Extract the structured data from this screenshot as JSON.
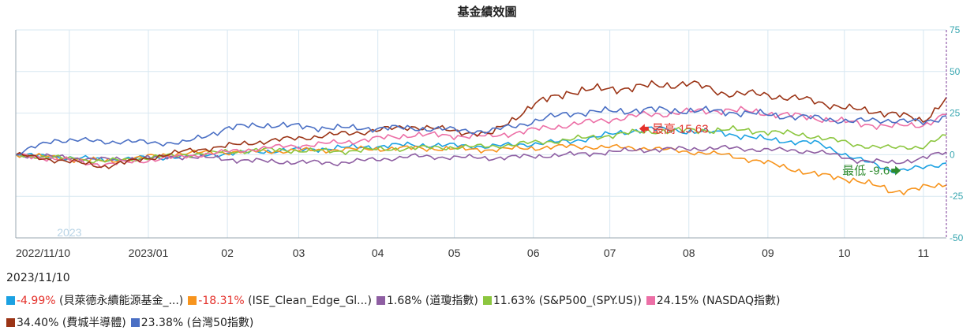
{
  "title": "基金績效圖",
  "as_of_date": "2023/11/10",
  "colors": {
    "grid": "#d7e7f1",
    "right_axis": "#3aa7b1",
    "annot_high": "#e4312b",
    "annot_low": "#2e8b2e",
    "neg_value": "#e4312b",
    "year_marker": "#b9d4e6"
  },
  "chart_data": {
    "type": "line",
    "title": "基金績效圖",
    "y_axis": {
      "position": "right",
      "range": [
        -50,
        75
      ],
      "ticks": [
        75,
        50,
        25,
        0,
        -25,
        -50
      ]
    },
    "x_range": [
      "2022-11-10",
      "2023-11-10"
    ],
    "x_ticks": [
      {
        "date": "2022-11-10",
        "label": "2022/11/10"
      },
      {
        "date": "2023-01-01",
        "label": "2023/01"
      },
      {
        "date": "2023-02-01",
        "label": "02"
      },
      {
        "date": "2023-03-01",
        "label": "03"
      },
      {
        "date": "2023-04-01",
        "label": "04"
      },
      {
        "date": "2023-05-01",
        "label": "05"
      },
      {
        "date": "2023-06-01",
        "label": "06"
      },
      {
        "date": "2023-07-01",
        "label": "07"
      },
      {
        "date": "2023-08-01",
        "label": "08"
      },
      {
        "date": "2023-09-01",
        "label": "09"
      },
      {
        "date": "2023-10-01",
        "label": "10"
      },
      {
        "date": "2023-11-01",
        "label": "11"
      }
    ],
    "year_marker": {
      "date": "2022-12-01",
      "label": "2023"
    },
    "grid": true,
    "legend_position": "bottom",
    "annotations": [
      {
        "label": "最高 15.63",
        "date": "2023-07-15",
        "value": 15.63,
        "arrow": "left"
      },
      {
        "label": "最低 -9.6",
        "date": "2023-10-20",
        "value": -9.6,
        "arrow": "right"
      }
    ],
    "series": [
      {
        "name": "貝萊德永續能源基金_...",
        "value_text": "-4.99%",
        "color": "#1ba1e2",
        "points": [
          [
            "2022-11-10",
            0
          ],
          [
            "2022-12-15",
            -3
          ],
          [
            "2023-01-15",
            -1
          ],
          [
            "2023-02-15",
            2
          ],
          [
            "2023-03-15",
            4
          ],
          [
            "2023-04-15",
            6
          ],
          [
            "2023-05-15",
            5
          ],
          [
            "2023-06-15",
            8
          ],
          [
            "2023-07-15",
            15.63
          ],
          [
            "2023-08-15",
            13
          ],
          [
            "2023-09-01",
            9
          ],
          [
            "2023-09-20",
            7
          ],
          [
            "2023-10-05",
            -2
          ],
          [
            "2023-10-20",
            -9.6
          ],
          [
            "2023-11-01",
            -8
          ],
          [
            "2023-11-10",
            -4.99
          ]
        ]
      },
      {
        "name": "ISE_Clean_Edge_Gl...",
        "value_text": "-18.31%",
        "color": "#f7941d",
        "points": [
          [
            "2022-11-10",
            0
          ],
          [
            "2022-12-15",
            -4
          ],
          [
            "2023-01-15",
            1
          ],
          [
            "2023-02-15",
            2
          ],
          [
            "2023-03-15",
            3
          ],
          [
            "2023-04-15",
            4
          ],
          [
            "2023-05-15",
            3
          ],
          [
            "2023-06-15",
            5
          ],
          [
            "2023-07-15",
            4
          ],
          [
            "2023-08-15",
            0
          ],
          [
            "2023-09-01",
            -5
          ],
          [
            "2023-09-20",
            -12
          ],
          [
            "2023-10-05",
            -15
          ],
          [
            "2023-10-20",
            -22
          ],
          [
            "2023-11-01",
            -20
          ],
          [
            "2023-11-10",
            -18.31
          ]
        ]
      },
      {
        "name": "道瓊指數",
        "value_text": "1.68%",
        "color": "#8e5ea2",
        "points": [
          [
            "2022-11-10",
            0
          ],
          [
            "2022-12-15",
            -3
          ],
          [
            "2023-01-15",
            -1
          ],
          [
            "2023-02-15",
            -4
          ],
          [
            "2023-03-15",
            -5
          ],
          [
            "2023-04-15",
            -1
          ],
          [
            "2023-05-15",
            -2
          ],
          [
            "2023-06-15",
            0
          ],
          [
            "2023-07-15",
            3
          ],
          [
            "2023-08-15",
            4
          ],
          [
            "2023-09-01",
            3
          ],
          [
            "2023-09-20",
            2
          ],
          [
            "2023-10-05",
            -3
          ],
          [
            "2023-10-20",
            -5
          ],
          [
            "2023-11-01",
            -2
          ],
          [
            "2023-11-10",
            1.68
          ]
        ]
      },
      {
        "name": "S&P500_(SPY.US)",
        "value_text": "11.63%",
        "color": "#8cc63f",
        "points": [
          [
            "2022-11-10",
            0
          ],
          [
            "2022-12-15",
            -4
          ],
          [
            "2023-01-15",
            0
          ],
          [
            "2023-02-15",
            3
          ],
          [
            "2023-03-15",
            2
          ],
          [
            "2023-04-15",
            4
          ],
          [
            "2023-05-15",
            5
          ],
          [
            "2023-06-15",
            9
          ],
          [
            "2023-07-15",
            14
          ],
          [
            "2023-08-15",
            15
          ],
          [
            "2023-09-01",
            14
          ],
          [
            "2023-09-20",
            11
          ],
          [
            "2023-10-05",
            6
          ],
          [
            "2023-10-20",
            4
          ],
          [
            "2023-11-01",
            5
          ],
          [
            "2023-11-10",
            11.63
          ]
        ]
      },
      {
        "name": "NASDAQ指數",
        "value_text": "24.15%",
        "color": "#ec6fa6",
        "points": [
          [
            "2022-11-10",
            0
          ],
          [
            "2022-12-15",
            -6
          ],
          [
            "2023-01-15",
            -1
          ],
          [
            "2023-02-15",
            4
          ],
          [
            "2023-03-15",
            7
          ],
          [
            "2023-04-15",
            12
          ],
          [
            "2023-05-15",
            11
          ],
          [
            "2023-06-15",
            18
          ],
          [
            "2023-07-15",
            24
          ],
          [
            "2023-08-15",
            27
          ],
          [
            "2023-09-01",
            25
          ],
          [
            "2023-09-20",
            22
          ],
          [
            "2023-10-05",
            19
          ],
          [
            "2023-10-20",
            17
          ],
          [
            "2023-11-01",
            18
          ],
          [
            "2023-11-10",
            24.15
          ]
        ]
      },
      {
        "name": "費城半導體",
        "value_text": "34.40%",
        "color": "#9b3416",
        "points": [
          [
            "2022-11-10",
            0
          ],
          [
            "2022-12-15",
            -7
          ],
          [
            "2023-01-15",
            2
          ],
          [
            "2023-02-15",
            8
          ],
          [
            "2023-03-15",
            12
          ],
          [
            "2023-04-15",
            17
          ],
          [
            "2023-05-15",
            12
          ],
          [
            "2023-06-01",
            30
          ],
          [
            "2023-06-15",
            38
          ],
          [
            "2023-07-15",
            41
          ],
          [
            "2023-08-01",
            43
          ],
          [
            "2023-08-15",
            37
          ],
          [
            "2023-09-01",
            36
          ],
          [
            "2023-09-20",
            32
          ],
          [
            "2023-10-05",
            27
          ],
          [
            "2023-10-20",
            25
          ],
          [
            "2023-11-01",
            20
          ],
          [
            "2023-11-10",
            34.4
          ]
        ]
      },
      {
        "name": "台灣50指數",
        "value_text": "23.38%",
        "color": "#4a6fc4",
        "points": [
          [
            "2022-11-10",
            0
          ],
          [
            "2022-11-25",
            9
          ],
          [
            "2022-12-15",
            8
          ],
          [
            "2023-01-15",
            7
          ],
          [
            "2023-02-01",
            16
          ],
          [
            "2023-02-15",
            18
          ],
          [
            "2023-03-15",
            16
          ],
          [
            "2023-04-15",
            16
          ],
          [
            "2023-05-15",
            14
          ],
          [
            "2023-06-15",
            25
          ],
          [
            "2023-07-15",
            27
          ],
          [
            "2023-08-15",
            26
          ],
          [
            "2023-09-01",
            24
          ],
          [
            "2023-09-20",
            22
          ],
          [
            "2023-10-05",
            20
          ],
          [
            "2023-10-20",
            21
          ],
          [
            "2023-11-01",
            19
          ],
          [
            "2023-11-10",
            23.38
          ]
        ]
      }
    ]
  }
}
